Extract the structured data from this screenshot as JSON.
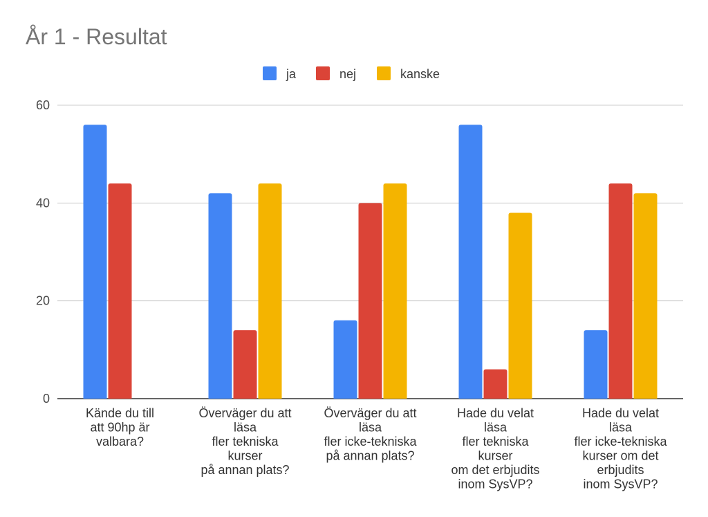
{
  "chart_data": {
    "type": "bar",
    "title": "År 1 - Resultat",
    "categories": [
      [
        "Kände du till",
        "att 90hp är",
        "valbara?"
      ],
      [
        "Överväger du att",
        "läsa",
        "fler tekniska",
        "kurser",
        "på annan plats?"
      ],
      [
        "Överväger du att",
        "läsa",
        "fler icke-tekniska",
        "på annan plats?"
      ],
      [
        "Hade du velat",
        "läsa",
        "fler tekniska",
        "kurser",
        "om det erbjudits",
        "inom SysVP?"
      ],
      [
        "Hade du velat",
        "läsa",
        "fler icke-tekniska",
        "kurser om det",
        "erbjudits",
        "inom SysVP?"
      ]
    ],
    "series": [
      {
        "name": "ja",
        "color": "#4285F4",
        "values": [
          56,
          42,
          16,
          56,
          14
        ]
      },
      {
        "name": "nej",
        "color": "#DB4437",
        "values": [
          44,
          14,
          40,
          6,
          44
        ]
      },
      {
        "name": "kanske",
        "color": "#F4B400",
        "values": [
          0,
          44,
          44,
          38,
          42
        ]
      }
    ],
    "yticks": [
      0,
      20,
      40,
      60
    ],
    "ylim": [
      0,
      60
    ],
    "grid": true,
    "legend_position": "top-center",
    "xlabel": "",
    "ylabel": ""
  }
}
